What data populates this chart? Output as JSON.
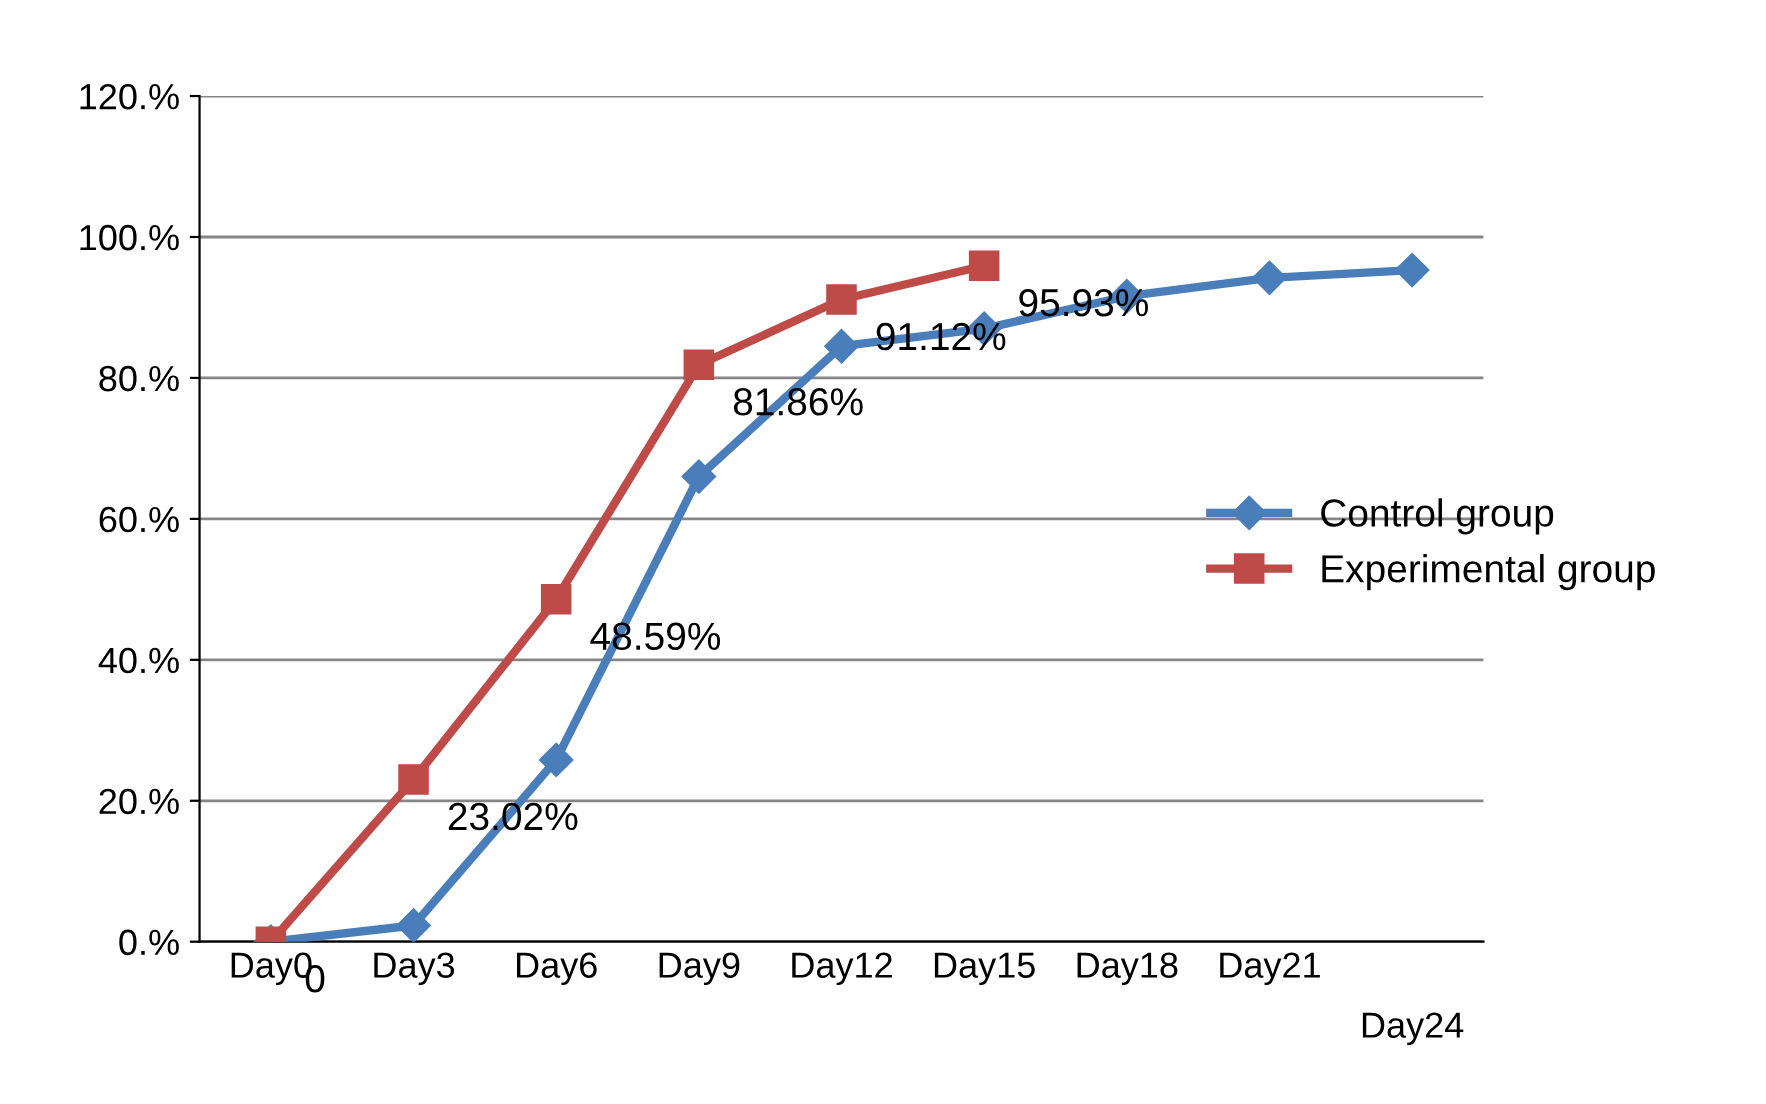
{
  "chart_data": {
    "type": "line",
    "categories": [
      "Day0",
      "Day3",
      "Day6",
      "Day9",
      "Day12",
      "Day15",
      "Day18",
      "Day21",
      "Day24"
    ],
    "series": [
      {
        "name": "Control group",
        "color": "#4a7ebb",
        "marker": "diamond",
        "values": [
          0,
          2.3,
          25.8,
          66,
          84.5,
          87,
          91.6,
          94.2,
          95.3
        ]
      },
      {
        "name": "Experimental group",
        "color": "#be4b48",
        "marker": "square",
        "values": [
          0,
          23.02,
          48.59,
          81.86,
          91.12,
          95.93,
          null,
          null,
          null
        ],
        "value_labels": [
          "0",
          "23.02%",
          "48.59%",
          "81.86%",
          "91.12%",
          "95.93%",
          null,
          null,
          null
        ]
      }
    ],
    "ylim": [
      0,
      120
    ],
    "yticks": [
      {
        "value": 0,
        "label": "0.%"
      },
      {
        "value": 20,
        "label": "20.%"
      },
      {
        "value": 40,
        "label": "40.%"
      },
      {
        "value": 60,
        "label": "60.%"
      },
      {
        "value": 80,
        "label": "80.%"
      },
      {
        "value": 100,
        "label": "100.%"
      },
      {
        "value": 120,
        "label": "120.%"
      }
    ],
    "grid": "y",
    "legend": "right",
    "line_style": "solid"
  }
}
